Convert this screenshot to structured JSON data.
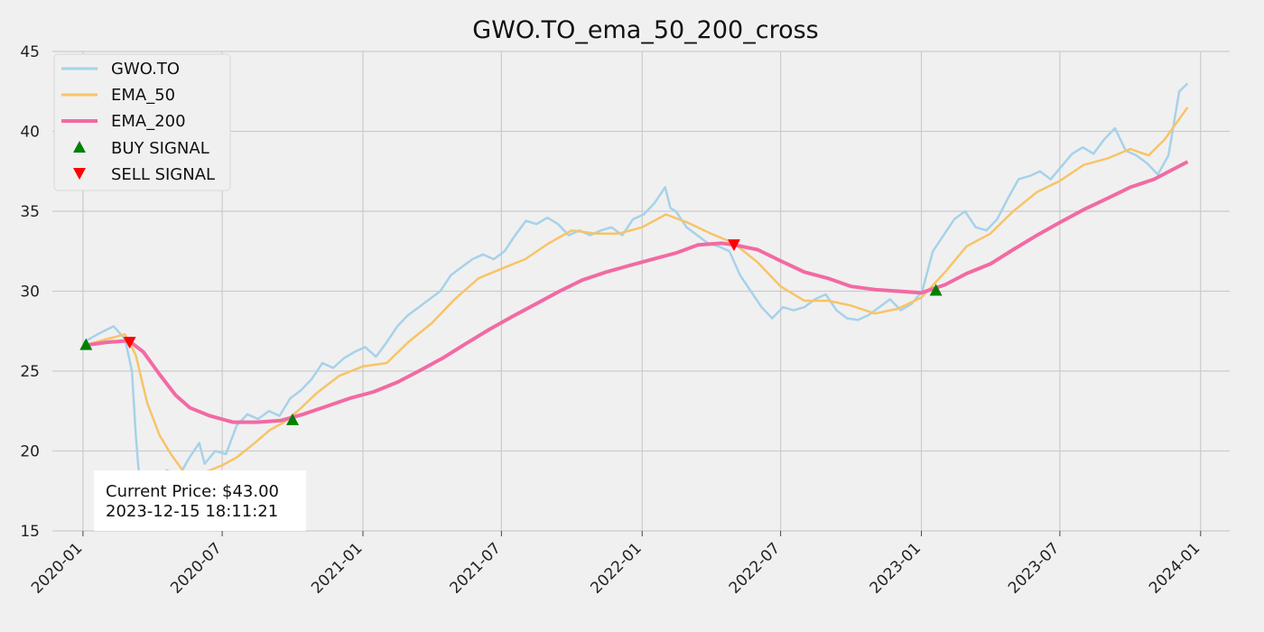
{
  "chart_data": {
    "type": "line",
    "title": "GWO.TO_ema_50_200_cross",
    "xlabel": "",
    "ylabel": "",
    "ylim": [
      15,
      45
    ],
    "xlim": [
      "2019-11-22",
      "2024-02-08"
    ],
    "yticks": [
      15,
      20,
      25,
      30,
      35,
      40,
      45
    ],
    "xticks": [
      "2020-01",
      "2020-07",
      "2021-01",
      "2021-07",
      "2022-01",
      "2022-07",
      "2023-01",
      "2023-07",
      "2024-01"
    ],
    "grid": true,
    "legend_position": "top-left",
    "colors": {
      "price": "#a6d2ea",
      "ema50": "#f7c467",
      "ema200": "#f26aa3",
      "buy": "#008000",
      "sell": "#ff0000",
      "grid": "#cbcbcb",
      "background": "#f0f0f0"
    },
    "series": [
      {
        "name": "GWO.TO",
        "x": [
          "2020-01-02",
          "2020-01-20",
          "2020-02-10",
          "2020-02-25",
          "2020-03-05",
          "2020-03-10",
          "2020-03-16",
          "2020-03-23",
          "2020-04-06",
          "2020-04-20",
          "2020-05-04",
          "2020-05-18",
          "2020-06-01",
          "2020-06-08",
          "2020-06-22",
          "2020-07-06",
          "2020-07-20",
          "2020-08-03",
          "2020-08-17",
          "2020-08-31",
          "2020-09-14",
          "2020-09-28",
          "2020-10-12",
          "2020-10-26",
          "2020-11-09",
          "2020-11-23",
          "2020-12-07",
          "2020-12-21",
          "2021-01-04",
          "2021-01-18",
          "2021-02-01",
          "2021-02-15",
          "2021-03-01",
          "2021-03-15",
          "2021-03-29",
          "2021-04-12",
          "2021-04-26",
          "2021-05-10",
          "2021-05-24",
          "2021-06-07",
          "2021-06-21",
          "2021-07-05",
          "2021-07-19",
          "2021-08-02",
          "2021-08-16",
          "2021-08-30",
          "2021-09-13",
          "2021-09-27",
          "2021-10-11",
          "2021-10-25",
          "2021-11-08",
          "2021-11-22",
          "2021-12-06",
          "2021-12-20",
          "2022-01-03",
          "2022-01-17",
          "2022-01-31",
          "2022-02-07",
          "2022-02-14",
          "2022-02-28",
          "2022-03-14",
          "2022-03-28",
          "2022-04-11",
          "2022-04-25",
          "2022-05-09",
          "2022-05-23",
          "2022-06-06",
          "2022-06-20",
          "2022-07-04",
          "2022-07-18",
          "2022-08-01",
          "2022-08-15",
          "2022-08-29",
          "2022-09-12",
          "2022-09-26",
          "2022-10-10",
          "2022-10-24",
          "2022-11-07",
          "2022-11-21",
          "2022-12-05",
          "2022-12-19",
          "2023-01-02",
          "2023-01-16",
          "2023-01-30",
          "2023-02-13",
          "2023-02-27",
          "2023-03-13",
          "2023-03-27",
          "2023-04-10",
          "2023-04-24",
          "2023-05-08",
          "2023-05-22",
          "2023-06-05",
          "2023-06-19",
          "2023-07-03",
          "2023-07-17",
          "2023-07-31",
          "2023-08-14",
          "2023-08-28",
          "2023-09-11",
          "2023-09-25",
          "2023-10-09",
          "2023-10-23",
          "2023-11-06",
          "2023-11-20",
          "2023-12-04",
          "2023-12-15"
        ],
        "values": [
          26.8,
          27.3,
          27.8,
          27.0,
          25.0,
          21.0,
          17.5,
          18.5,
          18.2,
          18.8,
          18.3,
          19.5,
          20.5,
          19.2,
          20.0,
          19.8,
          21.6,
          22.3,
          22.0,
          22.5,
          22.2,
          23.3,
          23.8,
          24.5,
          25.5,
          25.2,
          25.8,
          26.2,
          26.5,
          25.9,
          26.8,
          27.8,
          28.5,
          29.0,
          29.5,
          30.0,
          31.0,
          31.5,
          32.0,
          32.3,
          32.0,
          32.5,
          33.5,
          34.4,
          34.2,
          34.6,
          34.2,
          33.5,
          33.8,
          33.5,
          33.8,
          34.0,
          33.5,
          34.5,
          34.8,
          35.5,
          36.5,
          35.2,
          35.0,
          34.0,
          33.5,
          33.0,
          32.8,
          32.5,
          31.0,
          30.0,
          29.0,
          28.3,
          29.0,
          28.8,
          29.0,
          29.5,
          29.8,
          28.8,
          28.3,
          28.2,
          28.5,
          29.0,
          29.5,
          28.8,
          29.2,
          30.0,
          32.5,
          33.5,
          34.5,
          35.0,
          34.0,
          33.8,
          34.5,
          35.8,
          37.0,
          37.2,
          37.5,
          37.0,
          37.8,
          38.6,
          39.0,
          38.6,
          39.5,
          40.2,
          38.8,
          38.5,
          38.0,
          37.3,
          38.5,
          42.5,
          43.0
        ]
      },
      {
        "name": "EMA_50",
        "x": [
          "2020-01-02",
          "2020-02-01",
          "2020-02-25",
          "2020-03-10",
          "2020-03-25",
          "2020-04-10",
          "2020-04-25",
          "2020-05-10",
          "2020-05-25",
          "2020-06-10",
          "2020-07-01",
          "2020-07-20",
          "2020-08-10",
          "2020-09-01",
          "2020-09-20",
          "2020-10-10",
          "2020-11-01",
          "2020-12-01",
          "2021-01-01",
          "2021-02-01",
          "2021-03-01",
          "2021-04-01",
          "2021-05-01",
          "2021-06-01",
          "2021-07-01",
          "2021-08-01",
          "2021-09-01",
          "2021-10-01",
          "2021-11-01",
          "2021-12-01",
          "2022-01-01",
          "2022-02-01",
          "2022-03-01",
          "2022-04-01",
          "2022-05-01",
          "2022-06-01",
          "2022-07-01",
          "2022-08-01",
          "2022-09-01",
          "2022-10-01",
          "2022-11-01",
          "2022-12-01",
          "2023-01-01",
          "2023-02-01",
          "2023-03-01",
          "2023-04-01",
          "2023-05-01",
          "2023-06-01",
          "2023-07-01",
          "2023-08-01",
          "2023-09-01",
          "2023-10-01",
          "2023-10-25",
          "2023-11-15",
          "2023-12-15"
        ],
        "values": [
          26.6,
          27.0,
          27.3,
          26.0,
          23.0,
          21.0,
          19.8,
          18.8,
          18.3,
          18.7,
          19.1,
          19.6,
          20.4,
          21.3,
          21.8,
          22.6,
          23.6,
          24.7,
          25.3,
          25.5,
          26.8,
          28.0,
          29.5,
          30.8,
          31.4,
          32.0,
          33.0,
          33.8,
          33.6,
          33.6,
          34.0,
          34.8,
          34.3,
          33.6,
          33.0,
          31.8,
          30.3,
          29.4,
          29.4,
          29.1,
          28.6,
          28.9,
          29.6,
          31.2,
          32.8,
          33.6,
          35.0,
          36.2,
          36.9,
          37.9,
          38.3,
          38.9,
          38.5,
          39.5,
          41.5
        ]
      },
      {
        "name": "EMA_200",
        "x": [
          "2020-01-02",
          "2020-02-01",
          "2020-03-01",
          "2020-03-20",
          "2020-04-10",
          "2020-05-01",
          "2020-05-20",
          "2020-06-15",
          "2020-07-15",
          "2020-08-15",
          "2020-09-15",
          "2020-10-15",
          "2020-11-15",
          "2020-12-15",
          "2021-01-15",
          "2021-02-15",
          "2021-03-15",
          "2021-04-15",
          "2021-05-15",
          "2021-06-15",
          "2021-07-15",
          "2021-08-15",
          "2021-09-15",
          "2021-10-15",
          "2021-11-15",
          "2021-12-15",
          "2022-01-15",
          "2022-02-15",
          "2022-03-15",
          "2022-04-15",
          "2022-05-01",
          "2022-06-01",
          "2022-07-01",
          "2022-08-01",
          "2022-09-01",
          "2022-10-01",
          "2022-11-01",
          "2022-12-01",
          "2023-01-01",
          "2023-02-01",
          "2023-03-01",
          "2023-04-01",
          "2023-05-01",
          "2023-06-01",
          "2023-07-01",
          "2023-08-01",
          "2023-09-01",
          "2023-10-01",
          "2023-11-01",
          "2023-12-15"
        ],
        "values": [
          26.6,
          26.8,
          26.9,
          26.2,
          24.8,
          23.5,
          22.7,
          22.2,
          21.8,
          21.8,
          21.9,
          22.3,
          22.8,
          23.3,
          23.7,
          24.3,
          25.0,
          25.8,
          26.7,
          27.6,
          28.4,
          29.2,
          30.0,
          30.7,
          31.2,
          31.6,
          32.0,
          32.4,
          32.9,
          33.0,
          32.9,
          32.6,
          31.9,
          31.2,
          30.8,
          30.3,
          30.1,
          30.0,
          29.9,
          30.4,
          31.1,
          31.7,
          32.6,
          33.5,
          34.3,
          35.1,
          35.8,
          36.5,
          37.0,
          38.1
        ]
      }
    ],
    "buy_signals": [
      {
        "x": "2020-01-05",
        "y": 26.6
      },
      {
        "x": "2020-10-01",
        "y": 21.9
      },
      {
        "x": "2023-01-20",
        "y": 30.0
      }
    ],
    "sell_signals": [
      {
        "x": "2020-03-02",
        "y": 26.8
      },
      {
        "x": "2022-05-01",
        "y": 32.9
      }
    ],
    "legend_labels": [
      "GWO.TO",
      "EMA_50",
      "EMA_200",
      "BUY SIGNAL",
      "SELL SIGNAL"
    ],
    "annotation": {
      "price_line": "Current Price: $43.00",
      "time_line": "2023-12-15 18:11:21"
    }
  }
}
